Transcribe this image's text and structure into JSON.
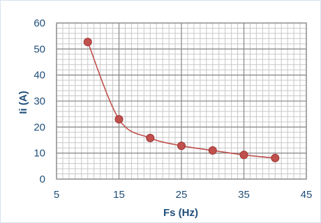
{
  "chart_data": {
    "type": "line",
    "title": "",
    "xlabel": "Fs (Hz)",
    "ylabel": "Ii (A)",
    "xlim": [
      5,
      45
    ],
    "ylim": [
      0,
      60
    ],
    "x_ticks": [
      "5",
      "15",
      "25",
      "35",
      "45"
    ],
    "y_ticks": [
      "0",
      "10",
      "20",
      "30",
      "40",
      "50",
      "60"
    ],
    "grid": true,
    "legend": "none",
    "smoothed": true,
    "series": [
      {
        "x": [
          10,
          15,
          20,
          25,
          30,
          35,
          40
        ],
        "values": [
          52.7,
          23.0,
          15.8,
          12.8,
          11.0,
          9.3,
          8.1
        ]
      }
    ],
    "colors": {
      "line": "#c0504d",
      "marker": "#c0504d",
      "major_grid": "#8c8c8c",
      "minor_grid": "#c8c8c8",
      "text": "#1f4e79"
    }
  }
}
